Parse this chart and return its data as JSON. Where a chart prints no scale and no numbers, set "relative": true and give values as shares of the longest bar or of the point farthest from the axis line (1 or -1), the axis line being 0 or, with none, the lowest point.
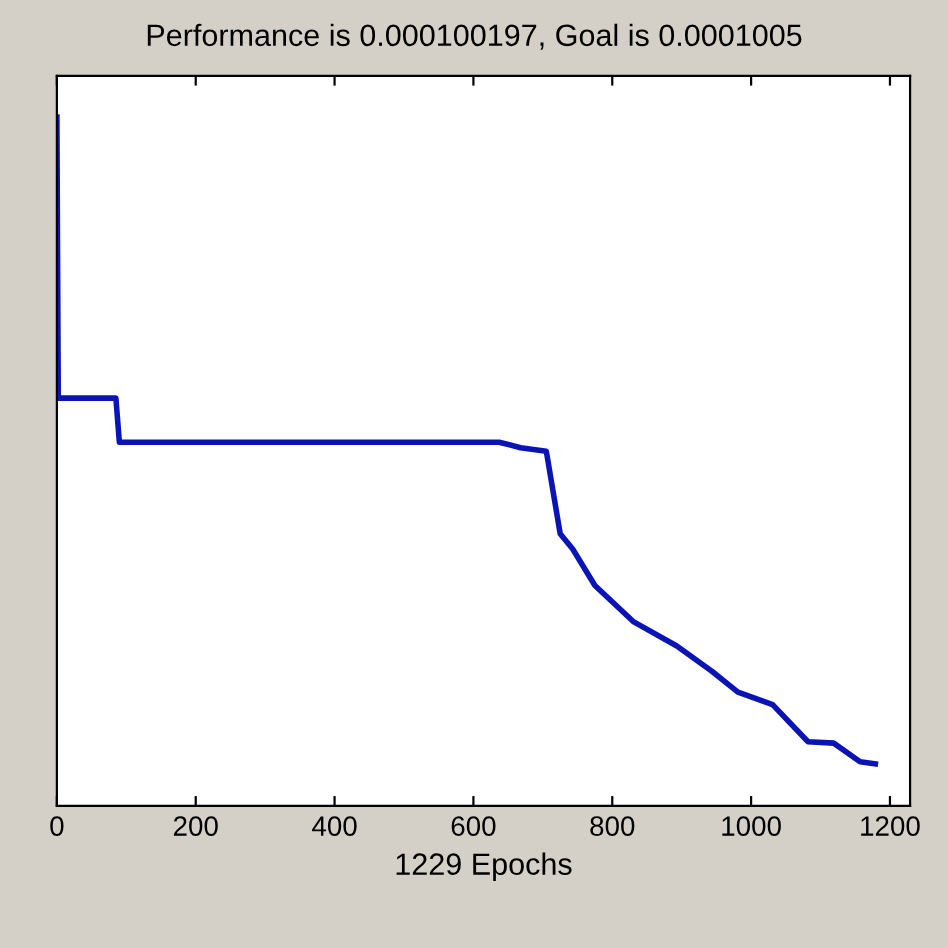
{
  "chart_data": {
    "type": "line",
    "title": "Performance is 0.000100197, Goal is 0.0001005",
    "xlabel": "1229 Epochs",
    "relative": true,
    "xlim": [
      0,
      1229
    ],
    "xticks": [
      0,
      200,
      400,
      600,
      800,
      1000,
      1200
    ],
    "grid": false,
    "legend": false,
    "series": [
      {
        "color": "#0a14b4",
        "x": [
          0,
          2,
          85,
          90,
          637,
          668,
          705,
          725,
          743,
          775,
          831,
          893,
          944,
          981,
          1031,
          1082,
          1119,
          1157,
          1179
        ],
        "values": [
          1.0,
          0.592,
          0.592,
          0.528,
          0.528,
          0.52,
          0.515,
          0.395,
          0.373,
          0.32,
          0.267,
          0.232,
          0.195,
          0.165,
          0.147,
          0.093,
          0.091,
          0.064,
          0.061
        ]
      }
    ]
  }
}
